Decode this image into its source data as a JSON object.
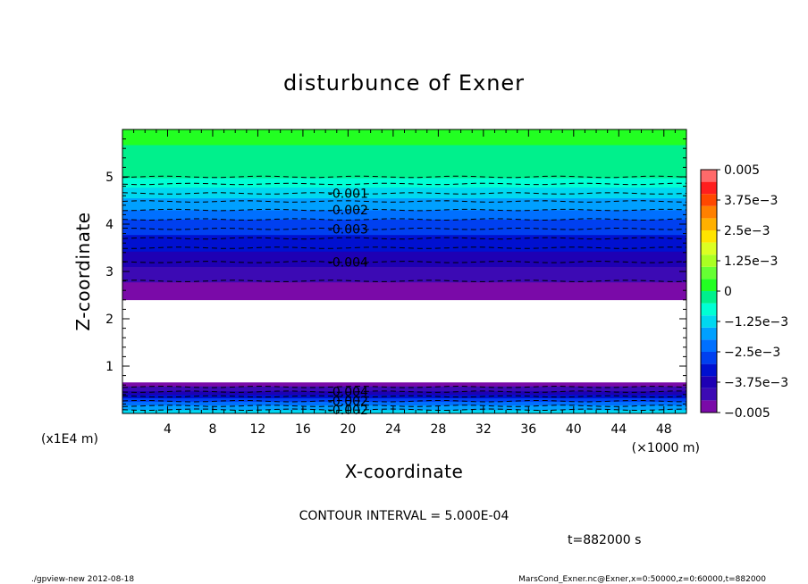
{
  "chart_data": {
    "type": "heatmap",
    "title": "disturbunce of Exner",
    "xlabel": "X-coordinate",
    "ylabel": "Z-coordinate",
    "x_unit_label": "(×1000 m)",
    "y_unit_label": "(x1E4 m)",
    "xlim": [
      0,
      50
    ],
    "ylim": [
      0,
      6
    ],
    "x_ticks": [
      4,
      8,
      12,
      16,
      20,
      24,
      28,
      32,
      36,
      40,
      44,
      48
    ],
    "y_ticks": [
      1,
      2,
      3,
      4,
      5
    ],
    "x_tick_labels": [
      "4",
      "8",
      "12",
      "16",
      "20",
      "24",
      "28",
      "32",
      "36",
      "40",
      "44",
      "48"
    ],
    "y_tick_labels": [
      "1",
      "2",
      "3",
      "4",
      "5"
    ],
    "contour_interval_text": "CONTOUR INTERVAL = 5.000E-04",
    "time_text": "t=882000 s",
    "colorbar": {
      "min": -0.005,
      "max": 0.005,
      "levels": [
        -0.005,
        -0.0045,
        -0.004,
        -0.0035,
        -0.003,
        -0.0025,
        -0.002,
        -0.0015,
        -0.001,
        -0.0005,
        0,
        0.0005,
        0.001,
        0.0015,
        0.002,
        0.0025,
        0.003,
        0.0035,
        0.004,
        0.0045,
        0.005
      ],
      "colors": [
        "#7a0aa8",
        "#3c0ab4",
        "#1e00b4",
        "#0010d0",
        "#0040f0",
        "#0070ff",
        "#00a0ff",
        "#00d8f0",
        "#00ffd4",
        "#00f08c",
        "#22ff22",
        "#66ff33",
        "#aaff22",
        "#dcff22",
        "#ffe400",
        "#ffb000",
        "#ff8000",
        "#ff4800",
        "#ff1e1e",
        "#ff6a6a"
      ],
      "tick_values": [
        -0.005,
        -0.00375,
        -0.0025,
        -0.00125,
        0,
        0.00125,
        0.0025,
        0.00375,
        0.005
      ],
      "tick_labels": [
        "−0.005",
        "−3.75e−3",
        "−2.5e−3",
        "−1.25e−3",
        "0",
        "1.25e−3",
        "2.5e−3",
        "3.75e−3",
        "0.005"
      ]
    },
    "field_profile": {
      "z": [
        0,
        0.1,
        0.2,
        0.3,
        0.4,
        0.5,
        0.6,
        0.66,
        2.4,
        2.5,
        2.7,
        2.9,
        3.1,
        3.3,
        3.5,
        3.7,
        3.9,
        4.1,
        4.2,
        4.35,
        4.5,
        4.65,
        4.85,
        5.0,
        6.0
      ],
      "value": [
        -0.0012,
        -0.0016,
        -0.0022,
        -0.0028,
        -0.0035,
        -0.0042,
        -0.0046,
        -0.0049,
        -0.0049,
        -0.0048,
        -0.0046,
        -0.0043,
        -0.004,
        -0.0037,
        -0.0034,
        -0.0031,
        -0.0028,
        -0.0025,
        -0.0022,
        -0.0019,
        -0.0016,
        -0.0012,
        -0.0009,
        -0.0004,
        0.0002
      ]
    },
    "blank_region": {
      "z_from": 0.66,
      "z_to": 2.4
    },
    "contour_lines": [
      {
        "z": 0.08,
        "label": "-0.002"
      },
      {
        "z": 0.16,
        "label": ""
      },
      {
        "z": 0.26,
        "label": "-0.002"
      },
      {
        "z": 0.36,
        "label": ""
      },
      {
        "z": 0.46,
        "label": "-0.004"
      },
      {
        "z": 0.56,
        "label": ""
      },
      {
        "z": 2.8,
        "label": ""
      },
      {
        "z": 3.2,
        "label": "-0.004"
      },
      {
        "z": 3.5,
        "label": ""
      },
      {
        "z": 3.7,
        "label": ""
      },
      {
        "z": 3.9,
        "label": "-0.003"
      },
      {
        "z": 4.1,
        "label": ""
      },
      {
        "z": 4.3,
        "label": "-0.002"
      },
      {
        "z": 4.48,
        "label": ""
      },
      {
        "z": 4.65,
        "label": "-0.001"
      },
      {
        "z": 4.85,
        "label": ""
      },
      {
        "z": 5.0,
        "label": ""
      }
    ],
    "contour_label_x": 20
  },
  "footer": {
    "left": "./gpview-new   2012-08-18",
    "right": "MarsCond_Exner.nc@Exner,x=0:50000,z=0:60000,t=882000"
  }
}
